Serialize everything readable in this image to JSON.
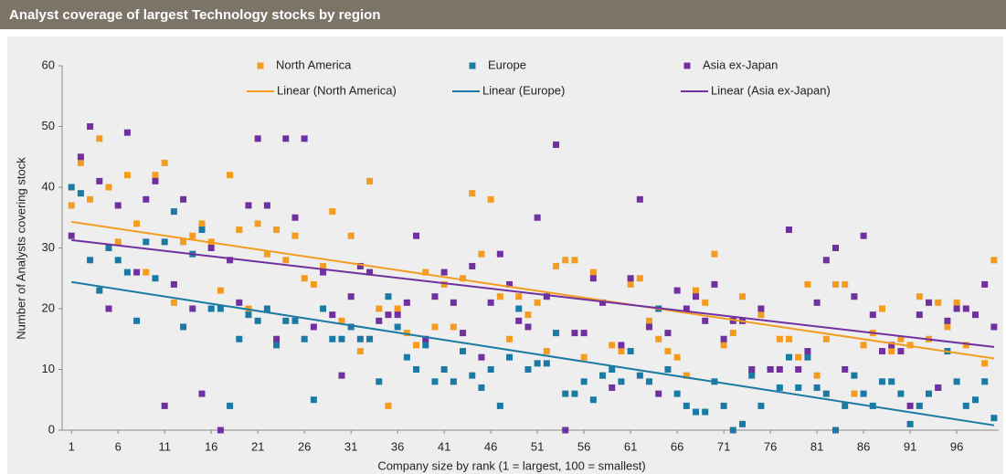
{
  "chart_data": {
    "type": "scatter",
    "title": "Analyst coverage of largest Technology stocks by region",
    "xlabel": "Company size by rank (1 = largest, 100 = smallest)",
    "ylabel": "Number of Analysts covering stock",
    "x": [
      1,
      2,
      3,
      4,
      5,
      6,
      7,
      8,
      9,
      10,
      11,
      12,
      13,
      14,
      15,
      16,
      17,
      18,
      19,
      20,
      21,
      22,
      23,
      24,
      25,
      26,
      27,
      28,
      29,
      30,
      31,
      32,
      33,
      34,
      35,
      36,
      37,
      38,
      39,
      40,
      41,
      42,
      43,
      44,
      45,
      46,
      47,
      48,
      49,
      50,
      51,
      52,
      53,
      54,
      55,
      56,
      57,
      58,
      59,
      60,
      61,
      62,
      63,
      64,
      65,
      66,
      67,
      68,
      69,
      70,
      71,
      72,
      73,
      74,
      75,
      76,
      77,
      78,
      79,
      80,
      81,
      82,
      83,
      84,
      85,
      86,
      87,
      88,
      89,
      90,
      91,
      92,
      93,
      94,
      95,
      96,
      97,
      98,
      99,
      100
    ],
    "series": [
      {
        "name": "North America",
        "color": "#f39c1f",
        "values": [
          37,
          44,
          38,
          48,
          40,
          31,
          42,
          34,
          26,
          42,
          44,
          21,
          31,
          32,
          34,
          31,
          23,
          42,
          33,
          20,
          34,
          29,
          33,
          28,
          32,
          25,
          24,
          27,
          36,
          18,
          32,
          13,
          41,
          20,
          4,
          20,
          16,
          14,
          26,
          17,
          24,
          17,
          25,
          39,
          29,
          38,
          22,
          15,
          22,
          19,
          21,
          13,
          27,
          28,
          28,
          12,
          26,
          9,
          14,
          13,
          24,
          25,
          18,
          15,
          13,
          12,
          9,
          23,
          21,
          29,
          14,
          16,
          22,
          10,
          19,
          10,
          15,
          15,
          12,
          24,
          9,
          15,
          24,
          24,
          6,
          14,
          16,
          20,
          13,
          15,
          14,
          22,
          15,
          21,
          17,
          21,
          14,
          19,
          11,
          28
        ]
      },
      {
        "name": "Europe",
        "color": "#1a7aa3",
        "values": [
          40,
          39,
          28,
          23,
          30,
          28,
          26,
          18,
          31,
          25,
          31,
          36,
          17,
          29,
          33,
          20,
          20,
          4,
          15,
          19,
          18,
          20,
          14,
          18,
          18,
          15,
          5,
          20,
          15,
          15,
          17,
          15,
          15,
          8,
          22,
          17,
          12,
          10,
          14,
          8,
          10,
          8,
          13,
          9,
          7,
          10,
          4,
          12,
          20,
          10,
          11,
          11,
          16,
          6,
          6,
          8,
          5,
          9,
          10,
          8,
          13,
          9,
          8,
          20,
          10,
          6,
          4,
          3,
          3,
          8,
          4,
          0,
          1,
          9,
          4,
          10,
          7,
          12,
          7,
          12,
          7,
          6,
          0,
          4,
          9,
          6,
          4,
          8,
          8,
          6,
          1,
          4,
          6,
          7,
          13,
          8,
          4,
          5,
          8,
          2
        ]
      },
      {
        "name": "Asia ex-Japan",
        "color": "#7030a0",
        "values": [
          32,
          45,
          50,
          41,
          20,
          37,
          49,
          26,
          38,
          41,
          4,
          24,
          38,
          20,
          6,
          30,
          0,
          28,
          21,
          37,
          48,
          37,
          15,
          48,
          35,
          48,
          17,
          26,
          19,
          9,
          22,
          27,
          26,
          18,
          19,
          19,
          21,
          32,
          15,
          22,
          26,
          21,
          16,
          27,
          12,
          21,
          29,
          24,
          18,
          17,
          35,
          22,
          47,
          0,
          16,
          16,
          25,
          21,
          7,
          14,
          25,
          38,
          17,
          6,
          16,
          23,
          20,
          22,
          18,
          24,
          15,
          18,
          18,
          10,
          20,
          10,
          10,
          33,
          10,
          13,
          21,
          28,
          30,
          10,
          22,
          32,
          19,
          13,
          14,
          13,
          4,
          19,
          21,
          7,
          18,
          20,
          20,
          19,
          24,
          17
        ]
      },
      {
        "name": "Linear (North America)",
        "type": "line",
        "color": "#f39c1f",
        "x": [
          1,
          100
        ],
        "values": [
          34.3,
          11.8
        ]
      },
      {
        "name": "Linear (Europe)",
        "type": "line",
        "color": "#1a7aa3",
        "x": [
          1,
          100
        ],
        "values": [
          24.4,
          0.8
        ]
      },
      {
        "name": "Linear (Asia ex-Japan)",
        "type": "line",
        "color": "#7030a0",
        "x": [
          1,
          100
        ],
        "values": [
          31.3,
          13.7
        ]
      }
    ],
    "xlim": [
      0,
      100.5
    ],
    "xticks": [
      1,
      6,
      11,
      16,
      21,
      26,
      31,
      36,
      41,
      46,
      51,
      56,
      61,
      66,
      71,
      76,
      81,
      86,
      91,
      96
    ],
    "ylim": [
      0,
      60
    ],
    "yticks": [
      0,
      10,
      20,
      30,
      40,
      50,
      60
    ],
    "grid": false
  }
}
